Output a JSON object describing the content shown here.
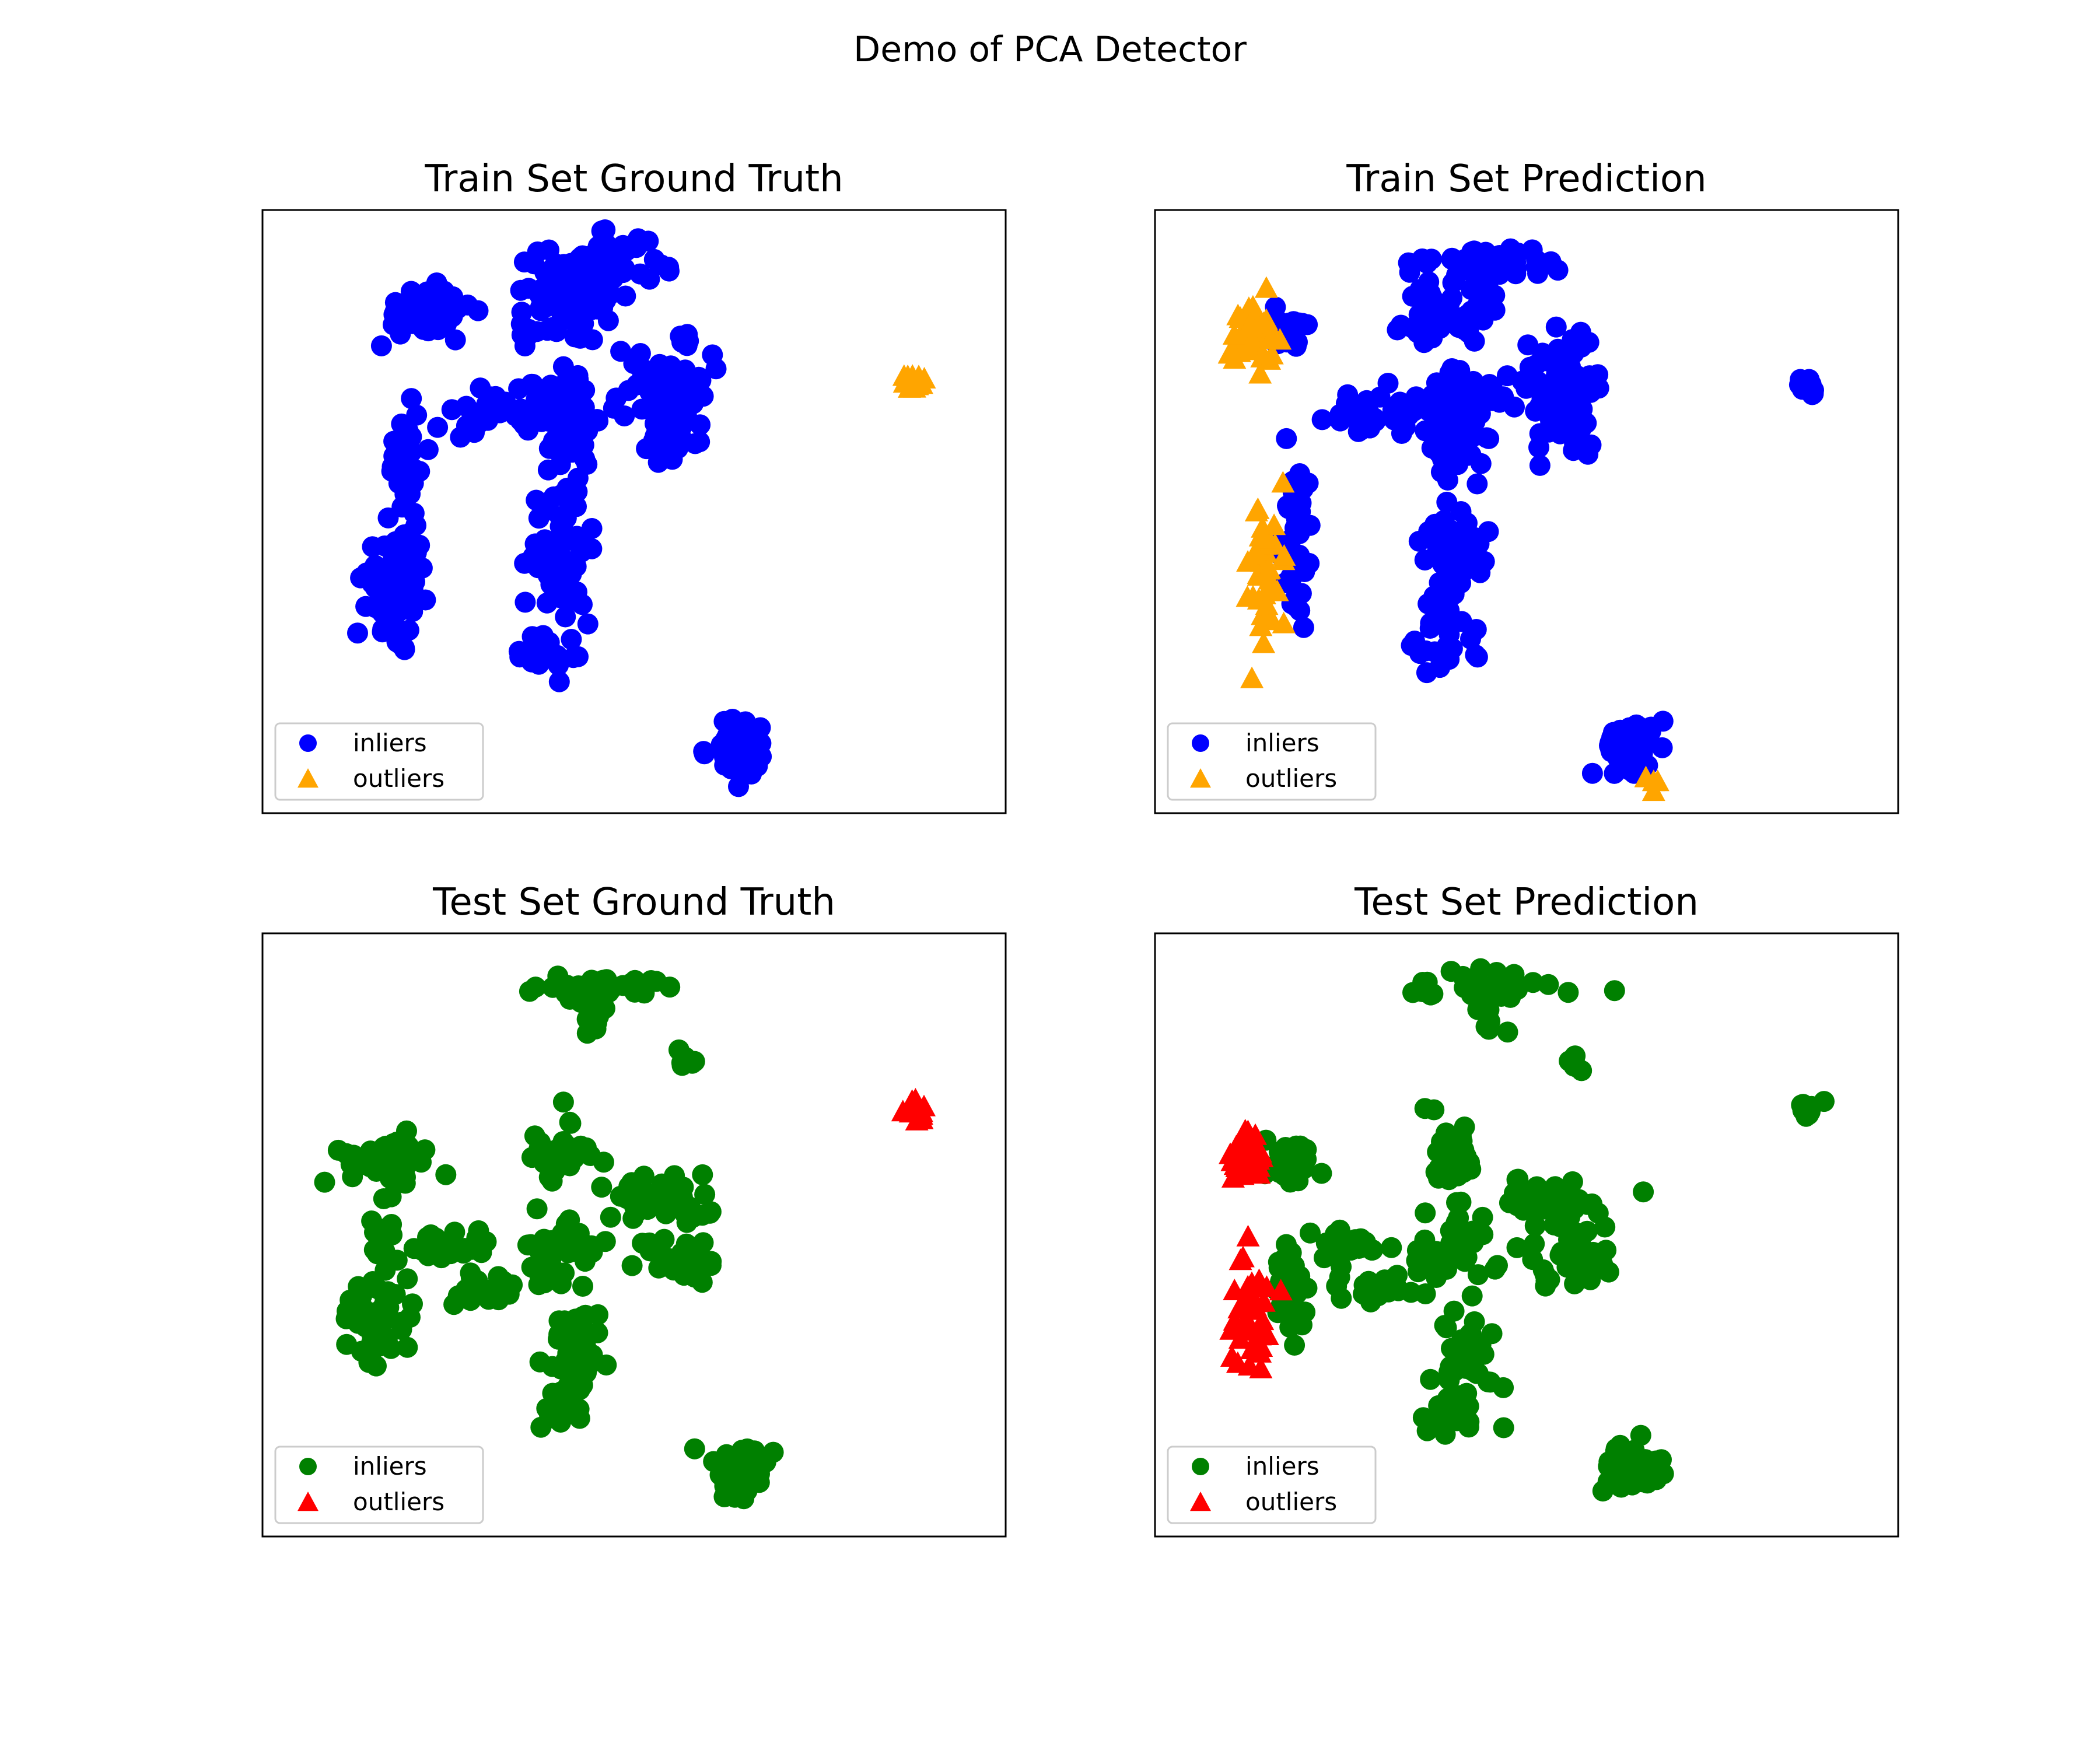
{
  "figure": {
    "title": "Demo of PCA Detector"
  },
  "chart_data": [
    {
      "type": "scatter",
      "title": "Train Set Ground Truth",
      "xlabel": "",
      "ylabel": "",
      "axes_ticks": false,
      "grid": false,
      "legend_placement": "lower-left",
      "inlier_color": "#0000ff",
      "outlier_color": "#ffa500",
      "inlier_marker": "circle",
      "outlier_marker": "triangle",
      "series": [
        {
          "name": "inliers",
          "role": "inlier"
        },
        {
          "name": "outliers",
          "role": "outlier"
        }
      ],
      "clusters": [
        {
          "role": "inlier",
          "x": 22,
          "y": 83,
          "sx": 3,
          "sy": 2,
          "n": 70
        },
        {
          "role": "inlier",
          "x": 18,
          "y": 38,
          "sx": 2,
          "sy": 4,
          "n": 80
        },
        {
          "role": "inlier",
          "x": 19,
          "y": 57,
          "sx": 1,
          "sy": 5,
          "n": 30
        },
        {
          "role": "inlier",
          "x": 34,
          "y": 66,
          "sx": 6,
          "sy": 2,
          "n": 50
        },
        {
          "role": "inlier",
          "x": 41,
          "y": 61,
          "sx": 2,
          "sy": 2,
          "n": 25
        },
        {
          "role": "inlier",
          "x": 40,
          "y": 83,
          "sx": 3,
          "sy": 3,
          "n": 50
        },
        {
          "role": "inlier",
          "x": 42,
          "y": 70,
          "sx": 2,
          "sy": 2,
          "n": 30
        },
        {
          "role": "inlier",
          "x": 40,
          "y": 43,
          "sx": 2,
          "sy": 6,
          "n": 60
        },
        {
          "role": "inlier",
          "x": 39,
          "y": 27,
          "sx": 2,
          "sy": 2,
          "n": 20
        },
        {
          "role": "inlier",
          "x": 46,
          "y": 90,
          "sx": 3,
          "sy": 3,
          "n": 40
        },
        {
          "role": "inlier",
          "x": 54,
          "y": 71,
          "sx": 3,
          "sy": 3,
          "n": 50
        },
        {
          "role": "inlier",
          "x": 55,
          "y": 63,
          "sx": 2,
          "sy": 2,
          "n": 30
        },
        {
          "role": "inlier",
          "x": 44,
          "y": 91,
          "sx": 5,
          "sy": 1.2,
          "n": 40
        },
        {
          "role": "inlier",
          "x": 45,
          "y": 86,
          "sx": 0.8,
          "sy": 2,
          "n": 8
        },
        {
          "role": "inlier",
          "x": 57,
          "y": 78,
          "sx": 0.7,
          "sy": 1.2,
          "n": 8
        },
        {
          "role": "inlier",
          "x": 64,
          "y": 11,
          "sx": 1.8,
          "sy": 2.2,
          "n": 70
        },
        {
          "role": "outlier",
          "x": 88,
          "y": 72,
          "sx": 0.8,
          "sy": 1,
          "n": 14
        }
      ]
    },
    {
      "type": "scatter",
      "title": "Train Set Prediction",
      "xlabel": "",
      "ylabel": "",
      "axes_ticks": false,
      "grid": false,
      "legend_placement": "lower-left",
      "inlier_color": "#0000ff",
      "outlier_color": "#ffa500",
      "inlier_marker": "circle",
      "outlier_marker": "triangle",
      "series": [
        {
          "name": "inliers",
          "role": "inlier"
        },
        {
          "name": "outliers",
          "role": "outlier"
        }
      ],
      "clusters": [
        {
          "role": "outlier",
          "x": 13,
          "y": 79,
          "sx": 1.5,
          "sy": 2.5,
          "n": 40
        },
        {
          "role": "outlier",
          "x": 15,
          "y": 40,
          "sx": 1.2,
          "sy": 6,
          "n": 40
        },
        {
          "role": "outlier",
          "x": 67,
          "y": 5,
          "sx": 0.5,
          "sy": 0.5,
          "n": 4
        },
        {
          "role": "inlier",
          "x": 18,
          "y": 80,
          "sx": 1.5,
          "sy": 2,
          "n": 25
        },
        {
          "role": "inlier",
          "x": 19,
          "y": 45,
          "sx": 1,
          "sy": 8,
          "n": 40
        },
        {
          "role": "inlier",
          "x": 34,
          "y": 66,
          "sx": 6,
          "sy": 2,
          "n": 50
        },
        {
          "role": "inlier",
          "x": 41,
          "y": 61,
          "sx": 2,
          "sy": 2,
          "n": 25
        },
        {
          "role": "inlier",
          "x": 40,
          "y": 83,
          "sx": 3,
          "sy": 3,
          "n": 50
        },
        {
          "role": "inlier",
          "x": 42,
          "y": 70,
          "sx": 2,
          "sy": 2,
          "n": 30
        },
        {
          "role": "inlier",
          "x": 40,
          "y": 43,
          "sx": 2,
          "sy": 6,
          "n": 60
        },
        {
          "role": "inlier",
          "x": 39,
          "y": 27,
          "sx": 2,
          "sy": 2,
          "n": 20
        },
        {
          "role": "inlier",
          "x": 54,
          "y": 71,
          "sx": 3,
          "sy": 3,
          "n": 50
        },
        {
          "role": "inlier",
          "x": 55,
          "y": 63,
          "sx": 2,
          "sy": 2,
          "n": 30
        },
        {
          "role": "inlier",
          "x": 44,
          "y": 91,
          "sx": 5,
          "sy": 1.2,
          "n": 40
        },
        {
          "role": "inlier",
          "x": 45,
          "y": 86,
          "sx": 0.8,
          "sy": 2,
          "n": 8
        },
        {
          "role": "inlier",
          "x": 57,
          "y": 78,
          "sx": 0.7,
          "sy": 1.2,
          "n": 8
        },
        {
          "role": "inlier",
          "x": 64,
          "y": 11,
          "sx": 1.8,
          "sy": 2.2,
          "n": 70
        },
        {
          "role": "inlier",
          "x": 88,
          "y": 71,
          "sx": 0.8,
          "sy": 0.8,
          "n": 12
        }
      ]
    },
    {
      "type": "scatter",
      "title": "Test Set Ground Truth",
      "xlabel": "",
      "ylabel": "",
      "axes_ticks": false,
      "grid": false,
      "legend_placement": "lower-left",
      "inlier_color": "#008000",
      "outlier_color": "#ff0000",
      "inlier_marker": "circle",
      "outlier_marker": "triangle",
      "series": [
        {
          "name": "inliers",
          "role": "inlier"
        },
        {
          "name": "outliers",
          "role": "outlier"
        }
      ],
      "clusters": [
        {
          "role": "inlier",
          "x": 16,
          "y": 62,
          "sx": 3,
          "sy": 2,
          "n": 45
        },
        {
          "role": "inlier",
          "x": 15,
          "y": 36,
          "sx": 2,
          "sy": 4,
          "n": 50
        },
        {
          "role": "inlier",
          "x": 16,
          "y": 50,
          "sx": 0.8,
          "sy": 3,
          "n": 10
        },
        {
          "role": "inlier",
          "x": 25,
          "y": 48,
          "sx": 3,
          "sy": 1.5,
          "n": 20
        },
        {
          "role": "inlier",
          "x": 31,
          "y": 41,
          "sx": 3,
          "sy": 1.5,
          "n": 20
        },
        {
          "role": "inlier",
          "x": 40,
          "y": 63,
          "sx": 2,
          "sy": 3,
          "n": 35
        },
        {
          "role": "inlier",
          "x": 40,
          "y": 48,
          "sx": 3,
          "sy": 3,
          "n": 40
        },
        {
          "role": "inlier",
          "x": 42,
          "y": 30,
          "sx": 2,
          "sy": 5,
          "n": 40
        },
        {
          "role": "inlier",
          "x": 40,
          "y": 20,
          "sx": 1.5,
          "sy": 2,
          "n": 15
        },
        {
          "role": "inlier",
          "x": 54,
          "y": 55,
          "sx": 4,
          "sy": 2.5,
          "n": 45
        },
        {
          "role": "inlier",
          "x": 56,
          "y": 46,
          "sx": 3,
          "sy": 2,
          "n": 35
        },
        {
          "role": "inlier",
          "x": 44,
          "y": 91,
          "sx": 5,
          "sy": 1.2,
          "n": 40
        },
        {
          "role": "inlier",
          "x": 45,
          "y": 85,
          "sx": 0.8,
          "sy": 2,
          "n": 8
        },
        {
          "role": "inlier",
          "x": 57,
          "y": 79,
          "sx": 0.7,
          "sy": 1,
          "n": 6
        },
        {
          "role": "inlier",
          "x": 64,
          "y": 11,
          "sx": 1.8,
          "sy": 2,
          "n": 60
        },
        {
          "role": "outlier",
          "x": 88,
          "y": 71,
          "sx": 0.9,
          "sy": 1,
          "n": 14
        }
      ]
    },
    {
      "type": "scatter",
      "title": "Test Set Prediction",
      "xlabel": "",
      "ylabel": "",
      "axes_ticks": false,
      "grid": false,
      "legend_placement": "lower-left",
      "inlier_color": "#008000",
      "outlier_color": "#ff0000",
      "inlier_marker": "circle",
      "outlier_marker": "triangle",
      "series": [
        {
          "name": "inliers",
          "role": "inlier"
        },
        {
          "name": "outliers",
          "role": "outlier"
        }
      ],
      "clusters": [
        {
          "role": "outlier",
          "x": 12,
          "y": 63,
          "sx": 1.5,
          "sy": 2,
          "n": 35
        },
        {
          "role": "outlier",
          "x": 13,
          "y": 36,
          "sx": 1.3,
          "sy": 5,
          "n": 40
        },
        {
          "role": "inlier",
          "x": 18,
          "y": 62,
          "sx": 2,
          "sy": 2,
          "n": 25
        },
        {
          "role": "inlier",
          "x": 18,
          "y": 40,
          "sx": 1.2,
          "sy": 4,
          "n": 25
        },
        {
          "role": "inlier",
          "x": 25,
          "y": 48,
          "sx": 3,
          "sy": 1.5,
          "n": 20
        },
        {
          "role": "inlier",
          "x": 31,
          "y": 41,
          "sx": 3,
          "sy": 1.5,
          "n": 20
        },
        {
          "role": "inlier",
          "x": 40,
          "y": 63,
          "sx": 2,
          "sy": 3,
          "n": 35
        },
        {
          "role": "inlier",
          "x": 40,
          "y": 48,
          "sx": 3,
          "sy": 3,
          "n": 40
        },
        {
          "role": "inlier",
          "x": 42,
          "y": 30,
          "sx": 2,
          "sy": 5,
          "n": 40
        },
        {
          "role": "inlier",
          "x": 40,
          "y": 20,
          "sx": 1.5,
          "sy": 2,
          "n": 15
        },
        {
          "role": "inlier",
          "x": 54,
          "y": 55,
          "sx": 4,
          "sy": 2.5,
          "n": 45
        },
        {
          "role": "inlier",
          "x": 56,
          "y": 46,
          "sx": 3,
          "sy": 2,
          "n": 35
        },
        {
          "role": "inlier",
          "x": 44,
          "y": 91,
          "sx": 5,
          "sy": 1.2,
          "n": 40
        },
        {
          "role": "inlier",
          "x": 45,
          "y": 85,
          "sx": 0.8,
          "sy": 2,
          "n": 8
        },
        {
          "role": "inlier",
          "x": 57,
          "y": 79,
          "sx": 0.7,
          "sy": 1,
          "n": 6
        },
        {
          "role": "inlier",
          "x": 64,
          "y": 11,
          "sx": 1.8,
          "sy": 2,
          "n": 60
        },
        {
          "role": "inlier",
          "x": 88,
          "y": 71,
          "sx": 0.8,
          "sy": 0.8,
          "n": 10
        }
      ]
    }
  ]
}
